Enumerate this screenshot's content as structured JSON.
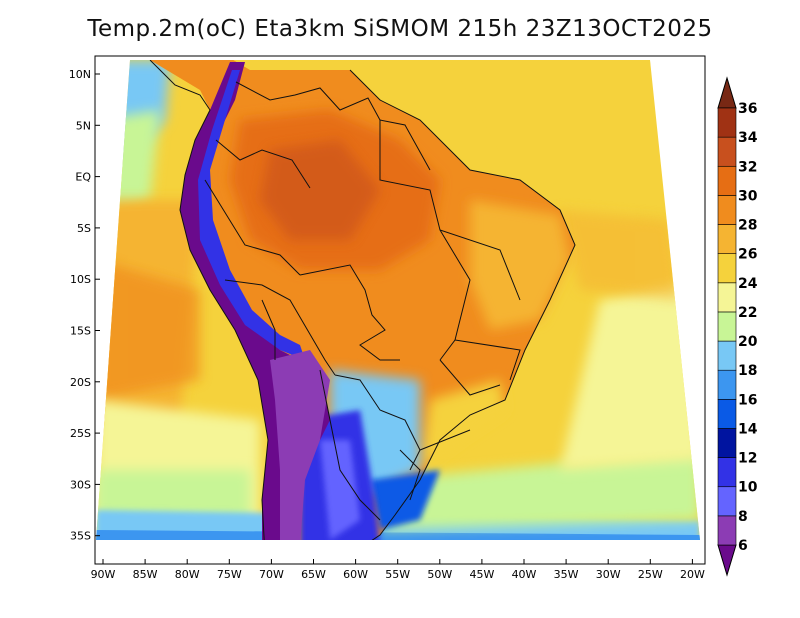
{
  "title": "Temp.2m(oC) Eta3km SiSMOM 215h 23Z13OCT2025",
  "latitude_labels": [
    "10N",
    "5N",
    "EQ",
    "5S",
    "10S",
    "15S",
    "20S",
    "25S",
    "30S",
    "35S"
  ],
  "longitude_labels": [
    "90W",
    "85W",
    "80W",
    "75W",
    "70W",
    "65W",
    "60W",
    "55W",
    "50W",
    "45W",
    "40W",
    "35W",
    "30W",
    "25W",
    "20W"
  ],
  "colorbar": {
    "labels": [
      "6",
      "8",
      "10",
      "12",
      "14",
      "16",
      "18",
      "20",
      "22",
      "24",
      "26",
      "28",
      "30",
      "32",
      "34",
      "36"
    ],
    "colors": [
      "#6a0a8c",
      "#8c3cb4",
      "#6464ff",
      "#3232e6",
      "#0014a0",
      "#0a5ae6",
      "#3c96f0",
      "#78c8f5",
      "#c8f596",
      "#f5f596",
      "#f5d23c",
      "#f5b432",
      "#f08c1e",
      "#e66e14",
      "#c8501e",
      "#a03214",
      "#782814"
    ]
  }
}
